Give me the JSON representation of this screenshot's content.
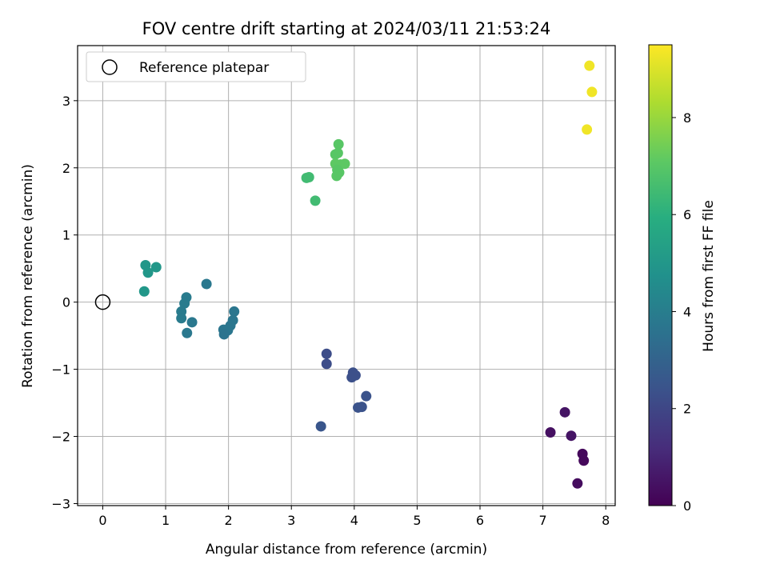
{
  "chart_data": {
    "type": "scatter",
    "title": "FOV centre drift starting at 2024/03/11 21:53:24",
    "xlabel": "Angular distance from reference (arcmin)",
    "ylabel": "Rotation from reference (arcmin)",
    "xlim": [
      -0.4,
      8.15
    ],
    "ylim": [
      -3.03,
      3.82
    ],
    "xticks": [
      0,
      1,
      2,
      3,
      4,
      5,
      6,
      7,
      8
    ],
    "yticks": [
      -3,
      -2,
      -1,
      0,
      1,
      2,
      3
    ],
    "grid": true,
    "legend": {
      "position": "top-left",
      "entries": [
        "Reference platepar"
      ]
    },
    "reference_point": {
      "x": 0,
      "y": 0
    },
    "colorbar": {
      "label": "Hours from first FF file",
      "colormap": "viridis",
      "range": [
        0,
        9.5
      ],
      "ticks": [
        0,
        2,
        4,
        6,
        8
      ]
    },
    "points": [
      {
        "x": 7.12,
        "y": -1.94,
        "c": 0.4
      },
      {
        "x": 7.35,
        "y": -1.64,
        "c": 0.5
      },
      {
        "x": 7.45,
        "y": -1.99,
        "c": 0.5
      },
      {
        "x": 7.63,
        "y": -2.26,
        "c": 0.2
      },
      {
        "x": 7.65,
        "y": -2.36,
        "c": 0.2
      },
      {
        "x": 7.55,
        "y": -2.7,
        "c": 0.3
      },
      {
        "x": 3.56,
        "y": -0.77,
        "c": 2.2
      },
      {
        "x": 3.56,
        "y": -0.92,
        "c": 2.2
      },
      {
        "x": 3.98,
        "y": -1.05,
        "c": 2.3
      },
      {
        "x": 3.96,
        "y": -1.12,
        "c": 2.3
      },
      {
        "x": 4.02,
        "y": -1.09,
        "c": 2.3
      },
      {
        "x": 4.19,
        "y": -1.4,
        "c": 2.4
      },
      {
        "x": 4.06,
        "y": -1.57,
        "c": 2.4
      },
      {
        "x": 4.12,
        "y": -1.56,
        "c": 2.4
      },
      {
        "x": 3.47,
        "y": -1.85,
        "c": 2.5
      },
      {
        "x": 0.68,
        "y": 0.55,
        "c": 5.0
      },
      {
        "x": 0.85,
        "y": 0.52,
        "c": 5.0
      },
      {
        "x": 0.72,
        "y": 0.44,
        "c": 5.0
      },
      {
        "x": 0.66,
        "y": 0.16,
        "c": 5.0
      },
      {
        "x": 1.65,
        "y": 0.27,
        "c": 3.8
      },
      {
        "x": 1.33,
        "y": 0.07,
        "c": 3.9
      },
      {
        "x": 1.3,
        "y": -0.02,
        "c": 3.9
      },
      {
        "x": 1.25,
        "y": -0.14,
        "c": 3.9
      },
      {
        "x": 1.25,
        "y": -0.24,
        "c": 3.9
      },
      {
        "x": 1.42,
        "y": -0.3,
        "c": 3.8
      },
      {
        "x": 1.34,
        "y": -0.46,
        "c": 3.8
      },
      {
        "x": 2.09,
        "y": -0.14,
        "c": 3.7
      },
      {
        "x": 2.07,
        "y": -0.27,
        "c": 3.7
      },
      {
        "x": 2.03,
        "y": -0.35,
        "c": 3.7
      },
      {
        "x": 1.99,
        "y": -0.42,
        "c": 3.7
      },
      {
        "x": 1.92,
        "y": -0.41,
        "c": 3.7
      },
      {
        "x": 1.93,
        "y": -0.48,
        "c": 3.6
      },
      {
        "x": 3.24,
        "y": 1.85,
        "c": 6.5
      },
      {
        "x": 3.28,
        "y": 1.86,
        "c": 6.5
      },
      {
        "x": 3.38,
        "y": 1.51,
        "c": 6.5
      },
      {
        "x": 3.75,
        "y": 2.35,
        "c": 7.0
      },
      {
        "x": 3.7,
        "y": 2.2,
        "c": 7.0
      },
      {
        "x": 3.74,
        "y": 2.22,
        "c": 7.0
      },
      {
        "x": 3.7,
        "y": 2.06,
        "c": 7.1
      },
      {
        "x": 3.78,
        "y": 2.05,
        "c": 7.1
      },
      {
        "x": 3.85,
        "y": 2.06,
        "c": 7.1
      },
      {
        "x": 3.73,
        "y": 1.97,
        "c": 7.0
      },
      {
        "x": 3.76,
        "y": 1.93,
        "c": 7.0
      },
      {
        "x": 3.72,
        "y": 1.88,
        "c": 7.0
      },
      {
        "x": 7.74,
        "y": 3.52,
        "c": 9.3
      },
      {
        "x": 7.78,
        "y": 3.13,
        "c": 9.3
      },
      {
        "x": 7.7,
        "y": 2.57,
        "c": 9.3
      }
    ]
  }
}
